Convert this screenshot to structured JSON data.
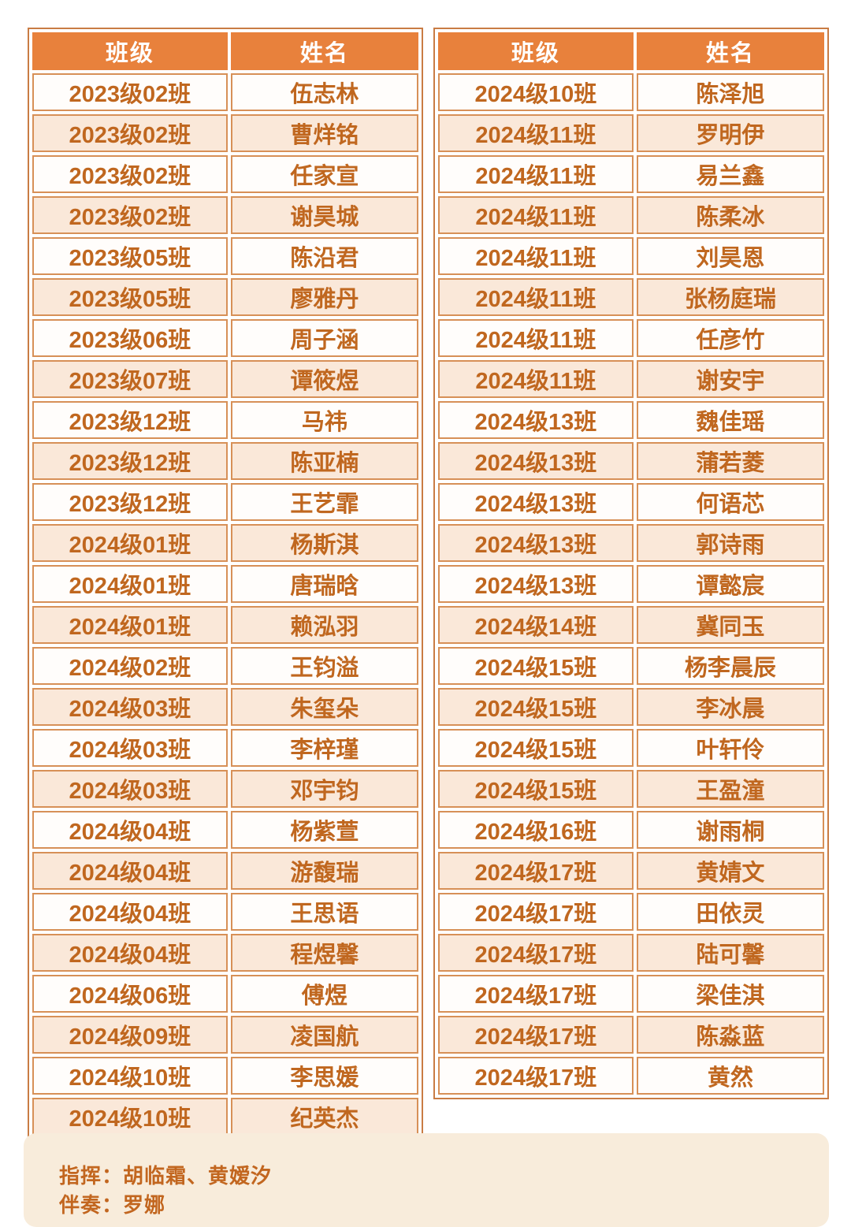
{
  "colors": {
    "header_bg": "#e8813c",
    "header_text": "#ffffff",
    "row_odd": "#fffdfb",
    "row_even": "#fae8d9",
    "cell_border": "#d79057",
    "outer_border": "#c97c44",
    "cell_text": "#c0671f",
    "footer_bg": "#f8ecdb",
    "footer_text": "#c2661f"
  },
  "tables": [
    {
      "headers": [
        "班级",
        "姓名"
      ],
      "rows": [
        [
          "2023级02班",
          "伍志林"
        ],
        [
          "2023级02班",
          "曹烊铭"
        ],
        [
          "2023级02班",
          "任家宣"
        ],
        [
          "2023级02班",
          "谢昊城"
        ],
        [
          "2023级05班",
          "陈沿君"
        ],
        [
          "2023级05班",
          "廖雅丹"
        ],
        [
          "2023级06班",
          "周子涵"
        ],
        [
          "2023级07班",
          "谭筱煜"
        ],
        [
          "2023级12班",
          "马祎"
        ],
        [
          "2023级12班",
          "陈亚楠"
        ],
        [
          "2023级12班",
          "王艺霏"
        ],
        [
          "2024级01班",
          "杨斯淇"
        ],
        [
          "2024级01班",
          "唐瑞晗"
        ],
        [
          "2024级01班",
          "赖泓羽"
        ],
        [
          "2024级02班",
          "王钧溢"
        ],
        [
          "2024级03班",
          "朱玺朵"
        ],
        [
          "2024级03班",
          "李梓瑾"
        ],
        [
          "2024级03班",
          "邓宇钧"
        ],
        [
          "2024级04班",
          "杨紫萱"
        ],
        [
          "2024级04班",
          "游馥瑞"
        ],
        [
          "2024级04班",
          "王思语"
        ],
        [
          "2024级04班",
          "程煜馨"
        ],
        [
          "2024级06班",
          "傅煜"
        ],
        [
          "2024级09班",
          "凌国航"
        ],
        [
          "2024级10班",
          "李思媛"
        ],
        [
          "2024级10班",
          "纪英杰"
        ]
      ]
    },
    {
      "headers": [
        "班级",
        "姓名"
      ],
      "rows": [
        [
          "2024级10班",
          "陈泽旭"
        ],
        [
          "2024级11班",
          "罗明伊"
        ],
        [
          "2024级11班",
          "易兰鑫"
        ],
        [
          "2024级11班",
          "陈柔冰"
        ],
        [
          "2024级11班",
          "刘昊恩"
        ],
        [
          "2024级11班",
          "张杨庭瑞"
        ],
        [
          "2024级11班",
          "任彦竹"
        ],
        [
          "2024级11班",
          "谢安宇"
        ],
        [
          "2024级13班",
          "魏佳瑶"
        ],
        [
          "2024级13班",
          "蒲若菱"
        ],
        [
          "2024级13班",
          "何语芯"
        ],
        [
          "2024级13班",
          "郭诗雨"
        ],
        [
          "2024级13班",
          "谭懿宸"
        ],
        [
          "2024级14班",
          "冀同玉"
        ],
        [
          "2024级15班",
          "杨李晨辰"
        ],
        [
          "2024级15班",
          "李冰晨"
        ],
        [
          "2024级15班",
          "叶轩伶"
        ],
        [
          "2024级15班",
          "王盈潼"
        ],
        [
          "2024级16班",
          "谢雨桐"
        ],
        [
          "2024级17班",
          "黄婧文"
        ],
        [
          "2024级17班",
          "田依灵"
        ],
        [
          "2024级17班",
          "陆可馨"
        ],
        [
          "2024级17班",
          "梁佳淇"
        ],
        [
          "2024级17班",
          "陈淼蓝"
        ],
        [
          "2024级17班",
          "黄然"
        ]
      ]
    }
  ],
  "footer": {
    "conductor_line": "指挥：胡临霜、黄嫒汐",
    "accompanist_line": "伴奏：罗娜"
  }
}
